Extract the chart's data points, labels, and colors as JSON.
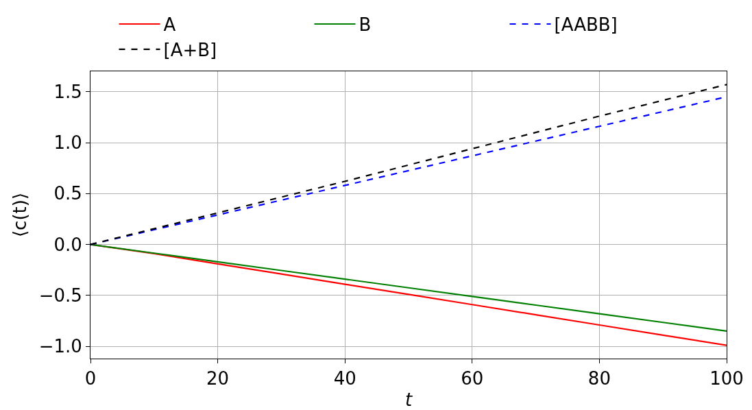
{
  "chart_data": {
    "type": "line",
    "xlabel": "t",
    "ylabel": "⟨c(t)⟩",
    "x": [
      0,
      10,
      20,
      30,
      40,
      50,
      60,
      70,
      80,
      90,
      100
    ],
    "series": [
      {
        "name": "A",
        "color": "#ff0000",
        "line_style": "solid",
        "values": [
          0,
          -0.09,
          -0.19,
          -0.29,
          -0.39,
          -0.49,
          -0.59,
          -0.69,
          -0.79,
          -0.89,
          -0.99
        ]
      },
      {
        "name": "B",
        "color": "#008000",
        "line_style": "solid",
        "values": [
          0,
          -0.085,
          -0.17,
          -0.255,
          -0.34,
          -0.425,
          -0.51,
          -0.595,
          -0.68,
          -0.765,
          -0.85
        ]
      },
      {
        "name": "[AABB]",
        "color": "#0000ff",
        "line_style": "dashed",
        "values": [
          0,
          0.145,
          0.29,
          0.435,
          0.58,
          0.725,
          0.87,
          1.015,
          1.16,
          1.305,
          1.45
        ]
      },
      {
        "name": "[A+B]",
        "color": "#000000",
        "line_style": "dashed",
        "values": [
          0,
          0.155,
          0.31,
          0.465,
          0.62,
          0.78,
          0.94,
          1.1,
          1.26,
          1.415,
          1.57
        ]
      }
    ],
    "xlim": [
      0,
      100
    ],
    "xticks": [
      0,
      20,
      40,
      60,
      80,
      100
    ],
    "ylim": [
      -1.12,
      1.7
    ],
    "yticks": [
      {
        "value": -1,
        "label": "−1.0"
      },
      {
        "value": -0.5,
        "label": "−0.5"
      },
      {
        "value": 0,
        "label": "0.0"
      },
      {
        "value": 0.5,
        "label": "0.5"
      },
      {
        "value": 1,
        "label": "1.0"
      },
      {
        "value": 1.5,
        "label": "1.5"
      }
    ],
    "grid": true,
    "legend": "top"
  }
}
